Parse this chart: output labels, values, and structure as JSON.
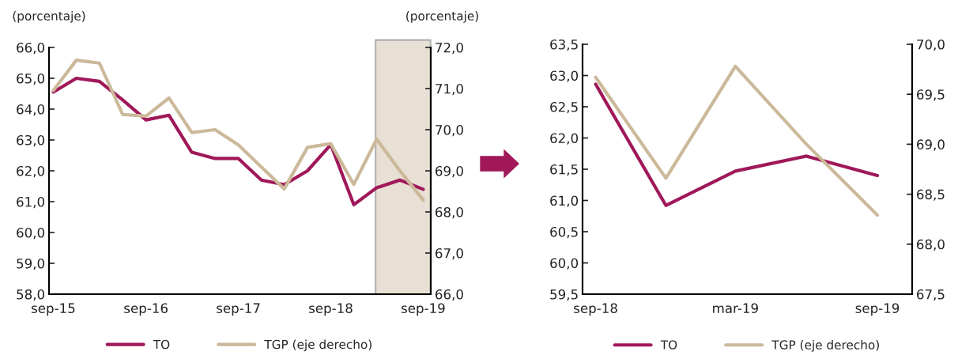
{
  "chart_data": [
    {
      "type": "line",
      "ylabel": "(porcentaje)",
      "y2label": "(porcentaje)",
      "x": [
        "2015-09",
        "2015-12",
        "2016-03",
        "2016-06",
        "2016-09",
        "2016-12",
        "2017-03",
        "2017-06",
        "2017-09",
        "2017-12",
        "2018-03",
        "2018-06",
        "2018-09",
        "2018-12",
        "2019-03",
        "2019-06",
        "2019-09"
      ],
      "series": [
        {
          "name": "TO",
          "color": "#a0185a",
          "values": [
            64.55,
            65.0,
            64.9,
            64.3,
            63.65,
            63.8,
            62.6,
            62.4,
            62.4,
            61.7,
            61.55,
            62.0,
            62.85,
            60.9,
            61.45,
            61.7,
            61.4
          ]
        },
        {
          "name": "TGP (eje derecho)",
          "color": "#cbb99a",
          "axis": "y2",
          "values": [
            70.95,
            71.69,
            71.62,
            70.37,
            70.33,
            70.77,
            69.93,
            70.0,
            69.63,
            69.09,
            68.56,
            69.57,
            69.66,
            68.67,
            69.77,
            69.0,
            68.29
          ]
        }
      ],
      "xlim": [
        "2015-08-15",
        "2019-10-01"
      ],
      "xticks": [
        {
          "value": "2015-09",
          "label": "sep-15"
        },
        {
          "value": "2016-09",
          "label": "sep-16"
        },
        {
          "value": "2017-09",
          "label": "sep-17"
        },
        {
          "value": "2018-09",
          "label": "sep-18"
        },
        {
          "value": "2019-09",
          "label": "sep-19"
        }
      ],
      "ylim": [
        58,
        66
      ],
      "yticks": [
        {
          "value": 58,
          "label": "58,0"
        },
        {
          "value": 59,
          "label": "59,0"
        },
        {
          "value": 60,
          "label": "60,0"
        },
        {
          "value": 61,
          "label": "61,0"
        },
        {
          "value": 62,
          "label": "62,0"
        },
        {
          "value": 63,
          "label": "63,0"
        },
        {
          "value": 64,
          "label": "64,0"
        },
        {
          "value": 65,
          "label": "65,0"
        },
        {
          "value": 66,
          "label": "66,0"
        }
      ],
      "y2lim": [
        66,
        72
      ],
      "y2ticks": [
        {
          "value": 66,
          "label": "66,0"
        },
        {
          "value": 67,
          "label": "67,0"
        },
        {
          "value": 68,
          "label": "68,0"
        },
        {
          "value": 69,
          "label": "69,0"
        },
        {
          "value": 70,
          "label": "70,0"
        },
        {
          "value": 71,
          "label": "71,0"
        },
        {
          "value": 72,
          "label": "72,0"
        }
      ],
      "bands": [
        {
          "axis": "x",
          "from": "2019-02-25",
          "to": "2019-09-30",
          "color": "#e8e0d4"
        }
      ],
      "legend": "bottom",
      "grid": false,
      "line_style": "solid",
      "marker": "none"
    },
    {
      "type": "line",
      "x": [
        "2018-09",
        "2018-12",
        "2019-03",
        "2019-06",
        "2019-09"
      ],
      "series": [
        {
          "name": "TO",
          "color": "#a0185a",
          "values": [
            62.86,
            60.92,
            61.47,
            61.71,
            61.4
          ]
        },
        {
          "name": "TGP (eje derecho)",
          "color": "#cbb99a",
          "axis": "y2",
          "values": [
            69.67,
            68.66,
            69.78,
            69.0,
            68.29
          ]
        }
      ],
      "xlim": [
        "2018-08-15",
        "2019-10-16"
      ],
      "xticks": [
        {
          "value": "2018-09",
          "label": "sep-18"
        },
        {
          "value": "2019-03",
          "label": "mar-19"
        },
        {
          "value": "2019-09",
          "label": "sep-19"
        }
      ],
      "ylim": [
        59.5,
        63.5
      ],
      "yticks": [
        {
          "value": 59.5,
          "label": "59,5"
        },
        {
          "value": 60,
          "label": "60,0"
        },
        {
          "value": 60.5,
          "label": "60,5"
        },
        {
          "value": 61,
          "label": "61,0"
        },
        {
          "value": 61.5,
          "label": "61,5"
        },
        {
          "value": 62,
          "label": "62,0"
        },
        {
          "value": 62.5,
          "label": "62,5"
        },
        {
          "value": 63,
          "label": "63,0"
        },
        {
          "value": 63.5,
          "label": "63,5"
        }
      ],
      "y2lim": [
        67.5,
        70
      ],
      "y2ticks": [
        {
          "value": 67.5,
          "label": "67,5"
        },
        {
          "value": 68,
          "label": "68,0"
        },
        {
          "value": 68.5,
          "label": "68,5"
        },
        {
          "value": 69,
          "label": "69,0"
        },
        {
          "value": 69.5,
          "label": "69,5"
        },
        {
          "value": 70,
          "label": "70,0"
        }
      ],
      "legend": "bottom",
      "grid": false,
      "line_style": "solid",
      "marker": "none"
    }
  ]
}
